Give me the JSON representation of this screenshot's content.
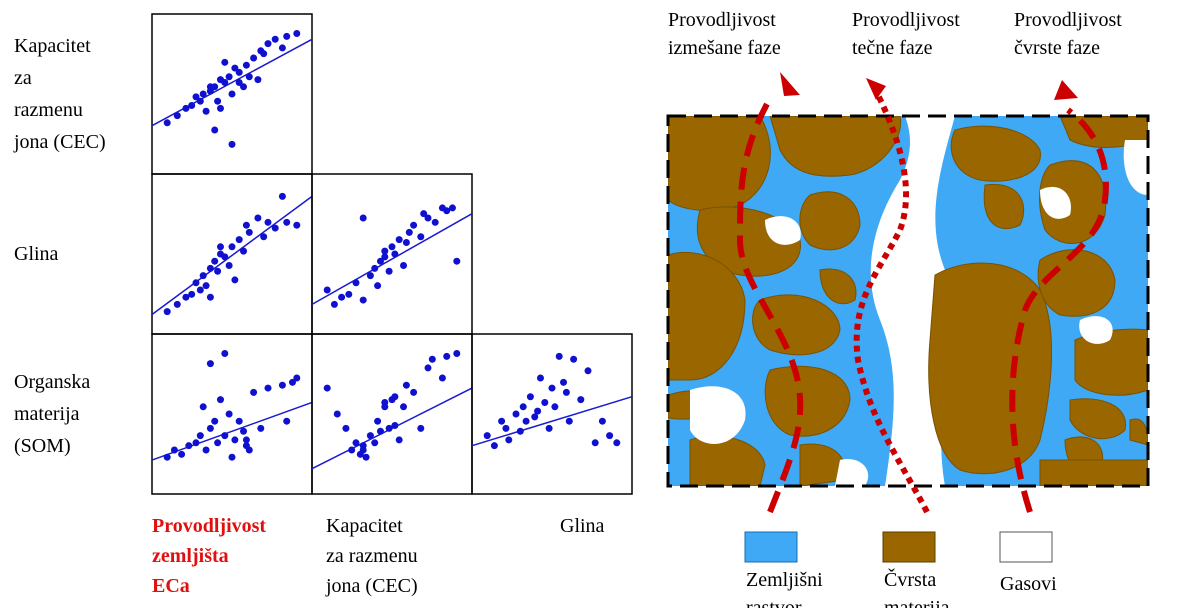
{
  "scatter_matrix": {
    "rows": [
      {
        "label": [
          "Kapacitet",
          "za",
          "razmenu",
          "jona (CEC)"
        ],
        "panels": [
          {
            "x": [
              5,
              12,
              18,
              22,
              25,
              28,
              30,
              32,
              35,
              38,
              40,
              42,
              45,
              48,
              50,
              52,
              55,
              58,
              60,
              62,
              65,
              70,
              75,
              80,
              88,
              95,
              38,
              50,
              55,
              45,
              35,
              42,
              68,
              72,
              85
            ],
            "y": [
              30,
              35,
              40,
              42,
              48,
              45,
              50,
              38,
              52,
              55,
              45,
              60,
              58,
              62,
              50,
              68,
              65,
              55,
              70,
              62,
              75,
              80,
              85,
              88,
              90,
              92,
              25,
              15,
              58,
              72,
              55,
              40,
              60,
              78,
              82
            ],
            "fit": [
              28,
              88
            ]
          }
        ]
      },
      {
        "label": [
          "Glina"
        ],
        "panels": [
          {
            "x": [
              5,
              12,
              18,
              22,
              25,
              28,
              30,
              32,
              35,
              38,
              40,
              42,
              45,
              48,
              50,
              55,
              58,
              60,
              62,
              68,
              72,
              75,
              80,
              85,
              88,
              95,
              35,
              42,
              52
            ],
            "y": [
              10,
              15,
              20,
              22,
              30,
              25,
              35,
              28,
              40,
              45,
              38,
              50,
              48,
              42,
              55,
              60,
              52,
              70,
              65,
              75,
              62,
              72,
              68,
              90,
              72,
              70,
              20,
              55,
              32
            ],
            "fit": [
              8,
              90
            ]
          },
          {
            "x": [
              5,
              10,
              15,
              20,
              25,
              30,
              35,
              38,
              40,
              42,
              45,
              48,
              50,
              52,
              55,
              58,
              60,
              62,
              65,
              70,
              72,
              75,
              80,
              85,
              88,
              92,
              95,
              30,
              45
            ],
            "y": [
              25,
              15,
              20,
              22,
              30,
              18,
              35,
              40,
              28,
              45,
              48,
              38,
              55,
              50,
              60,
              42,
              58,
              65,
              70,
              62,
              78,
              75,
              72,
              82,
              80,
              82,
              45,
              75,
              52
            ],
            "fit": [
              15,
              78
            ]
          }
        ]
      },
      {
        "label": [
          "Organska",
          "materija",
          "(SOM)"
        ],
        "panels": [
          {
            "x": [
              5,
              10,
              15,
              20,
              25,
              28,
              30,
              32,
              35,
              38,
              40,
              42,
              45,
              48,
              50,
              52,
              55,
              58,
              60,
              62,
              65,
              70,
              75,
              85,
              88,
              95,
              35,
              45,
              60,
              92
            ],
            "y": [
              20,
              25,
              22,
              28,
              30,
              35,
              55,
              25,
              40,
              45,
              30,
              60,
              35,
              50,
              20,
              32,
              45,
              38,
              28,
              25,
              65,
              40,
              68,
              70,
              45,
              75,
              85,
              92,
              32,
              72
            ],
            "fit": [
              18,
              58
            ]
          },
          {
            "x": [
              5,
              12,
              18,
              22,
              25,
              28,
              30,
              32,
              35,
              38,
              40,
              42,
              45,
              48,
              50,
              52,
              55,
              58,
              60,
              65,
              70,
              75,
              78,
              85,
              88,
              95,
              30,
              45,
              52
            ],
            "y": [
              68,
              50,
              40,
              25,
              30,
              22,
              28,
              20,
              35,
              30,
              45,
              38,
              55,
              40,
              60,
              42,
              32,
              55,
              70,
              65,
              40,
              82,
              88,
              75,
              90,
              92,
              25,
              58,
              62
            ],
            "fit": [
              12,
              68
            ]
          },
          {
            "x": [
              5,
              10,
              15,
              18,
              20,
              25,
              28,
              30,
              32,
              35,
              38,
              40,
              42,
              45,
              48,
              50,
              55,
              58,
              62,
              65,
              70,
              75,
              80,
              85,
              90,
              95,
              52,
              60
            ],
            "y": [
              35,
              28,
              45,
              40,
              32,
              50,
              38,
              55,
              45,
              62,
              48,
              52,
              75,
              58,
              40,
              68,
              90,
              72,
              45,
              88,
              60,
              80,
              30,
              45,
              35,
              30,
              55,
              65
            ],
            "fit": [
              28,
              62
            ]
          }
        ]
      }
    ],
    "column_labels": [
      [
        "Provodljivost",
        "zemljišta",
        "ECa"
      ],
      [
        "Kapacitet",
        "za razmenu",
        "jona (CEC)"
      ],
      [
        "Glina"
      ]
    ]
  },
  "diagram": {
    "paths": [
      [
        "Provodljivost",
        "izmešane faze"
      ],
      [
        "Provodljivost",
        "tečne faze"
      ],
      [
        "Provodljivost",
        "čvrste faze"
      ]
    ],
    "legend": [
      [
        "Zemljišni",
        "rastvor"
      ],
      [
        "Čvrsta",
        "materija"
      ],
      [
        "Gasovi"
      ]
    ]
  }
}
